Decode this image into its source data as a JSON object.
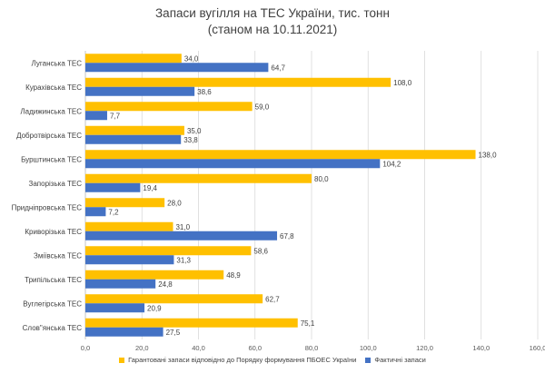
{
  "chart_data": {
    "type": "bar",
    "orientation": "horizontal",
    "title": "Запаси вугілля на ТЕС України, тис. тонн",
    "subtitle": "(станом на 10.11.2021)",
    "categories": [
      "Луганська ТЕС",
      "Курахівська ТЕС",
      "Ладижинська ТЕС",
      "Добротвірська ТЕС",
      "Бурштинська ТЕС",
      "Запорізька ТЕС",
      "Придніпровська ТЕС",
      "Криворізька ТЕС",
      "Зміївська ТЕС",
      "Трипільська ТЕС",
      "Вуглегірська ТЕС",
      "Слов\"янська ТЕС"
    ],
    "series": [
      {
        "name": "Гарантовані запаси відповідно до Порядку формування ПБОЕС України",
        "color": "#ffc000",
        "values": [
          34.0,
          108.0,
          59.0,
          35.0,
          138.0,
          80.0,
          28.0,
          31.0,
          58.6,
          48.9,
          62.7,
          75.1
        ],
        "labels": [
          "34,0",
          "108,0",
          "59,0",
          "35,0",
          "138,0",
          "80,0",
          "28,0",
          "31,0",
          "58,6",
          "48,9",
          "62,7",
          "75,1"
        ]
      },
      {
        "name": "Фактичні запаси",
        "color": "#4472c4",
        "values": [
          64.7,
          38.6,
          7.7,
          33.8,
          104.2,
          19.4,
          7.2,
          67.8,
          31.3,
          24.8,
          20.9,
          27.5
        ],
        "labels": [
          "64,7",
          "38,6",
          "7,7",
          "33,8",
          "104,2",
          "19,4",
          "7,2",
          "67,8",
          "31,3",
          "24,8",
          "20,9",
          "27,5"
        ]
      }
    ],
    "xlim": [
      0,
      160
    ],
    "xticks": [
      0,
      20,
      40,
      60,
      80,
      100,
      120,
      140,
      160
    ],
    "xtick_labels": [
      "0,0",
      "20,0",
      "40,0",
      "60,0",
      "80,0",
      "100,0",
      "120,0",
      "140,0",
      "160,0"
    ],
    "grid": true,
    "legend_position": "bottom"
  }
}
